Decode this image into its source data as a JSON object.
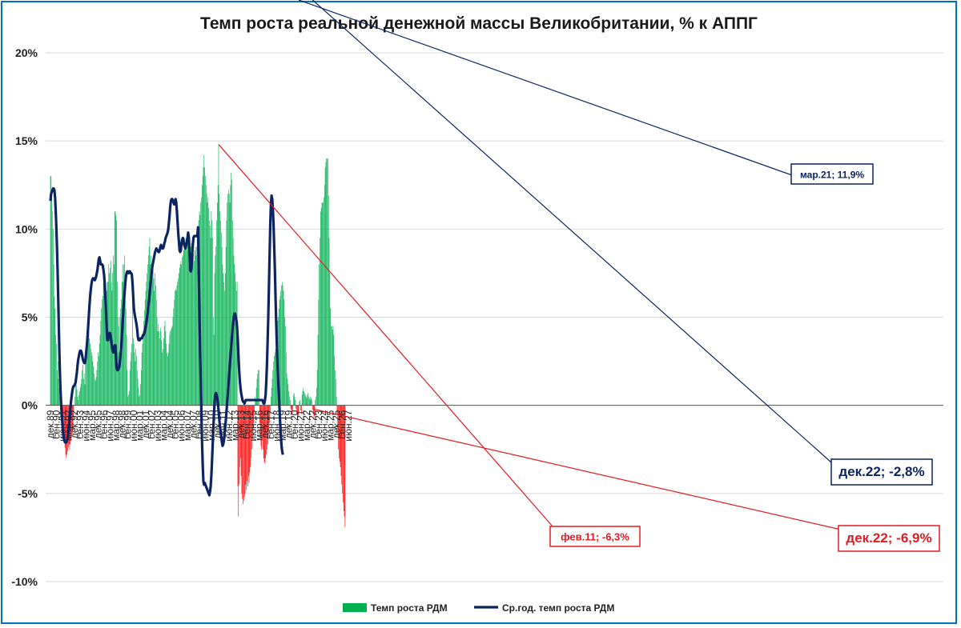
{
  "chart_data": {
    "type": "bar",
    "title": "Темп роста реальной денежной массы Великобритании, % к АППГ",
    "ylim": [
      -10,
      20
    ],
    "yticks": [
      "20%",
      "15%",
      "10%",
      "5%",
      "0%",
      "-5%",
      "-10%"
    ],
    "grid": true,
    "legend_position": "bottom",
    "x_tick_labels": [
      "дек.89",
      "сен.90",
      "июн.91",
      "мар.92",
      "дек.92",
      "сен.93",
      "июн.94",
      "мар.95",
      "дек.95",
      "сен.96",
      "июн.97",
      "мар.98",
      "дек.98",
      "сен.99",
      "июн.00",
      "мар.01",
      "дек.01",
      "сен.02",
      "июн.03",
      "мар.04",
      "дек.04",
      "сен.05",
      "июн.06",
      "мар.07",
      "дек.07",
      "сен.08",
      "июн.09",
      "мар.10",
      "дек.10",
      "сен.11",
      "июн.12",
      "мар.13",
      "дек.13",
      "сен.14",
      "июн.15",
      "мар.16",
      "дек.16",
      "сен.17",
      "июн.18",
      "мар.19",
      "дек.19",
      "сен.20",
      "июн.21",
      "мар.22",
      "дек.22",
      "сен.23",
      "июн.24",
      "мар.25",
      "дек.25",
      "сен.26",
      "июн.27"
    ],
    "series": [
      {
        "name": "Темп роста РДМ",
        "type": "bar",
        "color_positive": "#00b050",
        "color_negative": "#ff0000",
        "start": "дек.89",
        "values": [
          13.0,
          13.0,
          12.0,
          11.0,
          10.0,
          8.0,
          6.2,
          5.5,
          4.0,
          3.5,
          2.0,
          2.5,
          1.5,
          1.0,
          0.5,
          0.5,
          0,
          -0.3,
          -0.8,
          -1.2,
          -1.6,
          -2.0,
          -2.4,
          -2.8,
          -3.0,
          -2.8,
          -2.6,
          -2.4,
          -2.2,
          -2.5,
          -2.2,
          -2.0,
          -1.8,
          -1.6,
          -1.4,
          -0.8,
          0,
          0.5,
          1.6,
          1.3,
          0.9,
          0.5,
          0.3,
          0.6,
          0.8,
          1.0,
          1.2,
          1.5,
          2.0,
          2.3,
          1.5,
          1.8,
          1.2,
          2.8,
          3.4,
          2.8,
          3.6,
          4.0,
          4.2,
          3.8,
          3.5,
          3.2,
          3.0,
          2.8,
          2.5,
          2.2,
          1.8,
          1.5,
          1.4,
          1.6,
          2.0,
          2.5,
          3.0,
          2.8,
          3.5,
          4.0,
          4.8,
          5.5,
          6.0,
          6.2,
          7.0,
          8.0,
          7.5,
          6.5,
          6.0,
          6.5,
          7.0,
          7.0,
          8.0,
          7.5,
          7.8,
          8.2,
          7.0,
          6.5,
          7.5,
          8.5,
          8.0,
          11.0,
          11.0,
          10.8,
          10.5,
          7.0,
          5.0,
          4.5,
          3.0,
          5.0,
          5.5,
          6.0,
          7.0,
          8.0,
          7.0,
          8.0,
          8.5,
          6.0,
          5.5,
          4.0,
          2.0,
          0.5,
          0.6,
          0.8,
          2.0,
          2.5,
          3.0,
          3.5,
          7.5,
          3.8,
          3.5,
          3.0,
          2.5,
          3.2,
          2.8,
          2.0,
          1.5,
          1.0,
          0.5,
          0.6,
          1.2,
          2.0,
          3.0,
          3.5,
          4.2,
          4.8,
          5.4,
          6.0,
          6.5,
          7.0,
          7.5,
          8.0,
          8.5,
          9.0,
          9.5,
          8.0,
          8.5,
          8.0,
          7.6,
          7.8,
          7.2,
          6.5,
          7.5,
          6.8,
          6.0,
          5.0,
          4.2,
          4.6,
          4.2,
          3.8,
          4.4,
          4.2,
          3.7,
          3.0,
          3.2,
          3.8,
          4.5,
          4.8,
          4.2,
          3.5,
          3.0,
          2.8,
          3.0,
          3.5,
          4.0,
          4.2,
          4.3,
          4.4,
          4.5,
          5.0,
          5.5,
          6.0,
          6.5,
          6.6,
          6.5,
          6.8,
          7.0,
          7.2,
          7.5,
          7.8,
          8.0,
          8.2,
          8.0,
          8.4,
          8.5,
          8.8,
          9.0,
          9.5,
          9.0,
          9.5,
          8.8,
          9.2,
          9.5,
          8.5,
          8.2,
          8.8,
          9.0,
          9.2,
          8.8,
          8.5,
          8.6,
          8.2,
          8.8,
          9.0,
          8.5,
          9.0,
          9.5,
          10.0,
          10.5,
          11.0,
          10.8,
          11.5,
          11.8,
          12.5,
          13.0,
          13.5,
          14.2,
          13.5,
          13.0,
          12.5,
          12.0,
          11.5,
          11.8,
          11.2,
          10.5,
          10.2,
          9.5,
          11.0,
          10.5,
          9.5,
          5.0,
          4.0,
          7.5,
          8.5,
          9.0,
          10.5,
          11.5,
          12.5,
          14.8,
          12.0,
          11.0,
          10.5,
          9.8,
          9.0,
          8.0,
          7.5,
          7.0,
          6.5,
          7.5,
          9.0,
          10.5,
          11.5,
          12.0,
          12.2,
          12.0,
          11.5,
          12.5,
          13.2,
          12.8,
          10.5,
          9.5,
          8.5,
          8.0,
          7.5,
          7.0,
          6.5,
          7.0,
          -4.6,
          -6.3,
          -4.5,
          -3.5,
          -3.0,
          -4.0,
          -5.0,
          -5.3,
          -5.6,
          -5.4,
          -5.2,
          -5.0,
          -4.5,
          -4.8,
          -4.3,
          -4.6,
          -4.0,
          -4.4,
          -3.8,
          -3.5,
          -3.0,
          -2.5,
          -2.0,
          -1.5,
          -1.0,
          -0.5,
          0.5,
          0.3,
          1.0,
          1.5,
          1.8,
          2.0,
          2.0,
          -1.0,
          -1.8,
          -2.3,
          -2.5,
          -2.0,
          -2.5,
          -3.0,
          -3.2,
          -3.3,
          -3.0,
          -2.8,
          -2.5,
          -2.2,
          -1.8,
          -1.5,
          -1.0,
          -0.5,
          0.5,
          1.0,
          1.5,
          2.0,
          2.5,
          2.8,
          3.0,
          3.2,
          3.5,
          4.0,
          4.8,
          5.0,
          5.5,
          6.0,
          6.2,
          6.5,
          6.8,
          7.0,
          6.8,
          6.5,
          6.0,
          5.0,
          4.5,
          3.0,
          1.8,
          1.5,
          1.2,
          0.8,
          0.5,
          0.3,
          -0.2,
          -0.4,
          -0.5,
          -0.3,
          0.6,
          0.7,
          0.5,
          0.3,
          -0.2,
          -0.5,
          -0.8,
          -0.6,
          -0.4,
          0.2,
          0.3,
          -0.3,
          -0.5,
          0.6,
          0.8,
          1.0,
          0.8,
          0.7,
          0.6,
          0.5,
          0.4,
          0.6,
          0.7,
          0.5,
          0.4,
          0.3,
          0.5,
          0.4,
          0.3,
          -0.2,
          -0.5,
          -0.8,
          -0.6,
          0.3,
          0.5,
          1.0,
          2.0,
          4.0,
          6.0,
          8.0,
          9.5,
          11.0,
          11.2,
          11.5,
          11.5,
          11.5,
          11.8,
          12.5,
          13.5,
          13.8,
          14.0,
          14.0,
          14.0,
          11.9,
          9.5,
          7.5,
          5.5,
          4.5,
          4.5,
          4.3,
          4.5,
          4.0,
          2.8,
          2.0,
          1.5,
          0.5,
          -0.5,
          -1.5,
          -2.5,
          -3.0,
          -3.2,
          -3.5,
          -4.0,
          -4.5,
          -5.0,
          -5.5,
          -6.0,
          -6.3,
          -6.9
        ]
      },
      {
        "name": "Ср.год. темп роста РДМ",
        "type": "line",
        "color": "#0d2463",
        "start": "дек.89",
        "values": [
          11.6,
          12.0,
          12.1,
          12.2,
          12.3,
          12.3,
          12.2,
          11.8,
          11.0,
          10.0,
          8.8,
          7.3,
          5.6,
          3.8,
          2.2,
          1.0,
          0.2,
          -0.5,
          -1.0,
          -1.5,
          -1.8,
          -2.0,
          -2.1,
          -2.1,
          -2.1,
          -2.0,
          -1.8,
          -1.5,
          -1.1,
          -0.7,
          -0.3,
          0.2,
          0.5,
          0.8,
          1.0,
          1.1,
          1.1,
          1.2,
          1.3,
          1.6,
          1.9,
          2.3,
          2.6,
          2.8,
          3.0,
          3.1,
          3.1,
          3.0,
          2.8,
          2.6,
          2.5,
          2.4,
          2.4,
          2.6,
          3.0,
          3.4,
          3.9,
          4.5,
          5.1,
          5.7,
          6.2,
          6.6,
          6.9,
          7.1,
          7.2,
          7.2,
          7.2,
          7.1,
          7.2,
          7.3,
          7.5,
          7.7,
          8.0,
          8.3,
          8.4,
          8.2,
          8.0,
          8.0,
          8.0,
          7.9,
          7.7,
          7.4,
          6.9,
          6.1,
          5.3,
          4.3,
          3.7,
          3.7,
          4.0,
          4.1,
          4.1,
          3.9,
          3.6,
          3.3,
          3.1,
          3.0,
          3.2,
          3.4,
          3.4,
          2.8,
          2.1,
          2.0,
          2.0,
          2.1,
          2.2,
          2.5,
          2.9,
          3.4,
          4.0,
          4.7,
          5.3,
          5.9,
          6.4,
          6.9,
          7.3,
          7.5,
          7.6,
          7.6,
          7.5,
          7.6,
          7.6,
          7.5,
          7.5,
          7.4,
          6.9,
          6.2,
          5.5,
          5.2,
          5.0,
          4.8,
          4.6,
          4.3,
          3.9,
          3.7,
          3.7,
          3.7,
          3.8,
          3.8,
          3.8,
          3.9,
          4.0,
          4.0,
          4.1,
          4.3,
          4.5,
          4.7,
          5.0,
          5.3,
          5.7,
          6.0,
          6.4,
          6.8,
          7.2,
          7.6,
          7.9,
          8.1,
          8.3,
          8.5,
          8.7,
          8.8,
          8.9,
          8.8,
          8.8,
          8.7,
          8.7,
          8.8,
          9.0,
          9.1,
          9.0,
          8.9,
          8.9,
          9.0,
          9.2,
          9.3,
          9.5,
          9.6,
          9.7,
          9.8,
          10.0,
          10.4,
          10.8,
          11.3,
          11.6,
          11.7,
          11.7,
          11.6,
          11.5,
          11.4,
          11.6,
          11.7,
          11.5,
          11.0,
          10.4,
          9.8,
          9.3,
          8.8,
          8.7,
          8.8,
          9.2,
          9.4,
          9.5,
          9.3,
          9.1,
          9.0,
          8.9,
          9.1,
          9.3,
          9.5,
          9.8,
          9.5,
          8.7,
          7.7,
          7.6,
          7.8,
          8.5,
          9.1,
          9.5,
          9.6,
          9.6,
          9.6,
          9.6,
          9.6,
          9.7,
          10.1,
          7.5,
          5.3,
          3.2,
          1.4,
          -0.4,
          -2.1,
          -3.4,
          -4.3,
          -4.5,
          -4.4,
          -4.5,
          -4.6,
          -4.7,
          -4.8,
          -4.9,
          -5.0,
          -5.1,
          -4.9,
          -4.6,
          -4.0,
          -3.2,
          -2.3,
          -1.3,
          -0.5,
          0.2,
          0.6,
          0.7,
          0.6,
          0.4,
          0.1,
          -0.3,
          -0.8,
          -1.2,
          -1.5,
          -1.8,
          -2.1,
          -2.3,
          -2.2,
          -2.0,
          -1.6,
          -1.2,
          -0.8,
          -0.3,
          0.2,
          0.7,
          1.2,
          1.8,
          2.3,
          2.8,
          3.3,
          3.8,
          4.3,
          4.7,
          5.0,
          5.2,
          5.2,
          5.0,
          4.8,
          4.4,
          3.7,
          2.8,
          2.0,
          1.4,
          1.0,
          0.7,
          0.5,
          0.3,
          0.2,
          0.2,
          0.1,
          0.2,
          0.3,
          0.3,
          0.3,
          0.3,
          0.3,
          0.3,
          0.3,
          0.3,
          0.3,
          0.3,
          0.3,
          0.3,
          0.3,
          0.3,
          0.3,
          0.3,
          0.3,
          0.3,
          0.3,
          0.3,
          0.3,
          0.3,
          0.3,
          0.3,
          0.3,
          0.3,
          0.2,
          0.1,
          0.1,
          0.3,
          0.6,
          1.3,
          2.3,
          3.6,
          5.0,
          6.7,
          8.5,
          10.2,
          11.4,
          11.9,
          11.7,
          11.1,
          10.2,
          9.0,
          7.7,
          6.1,
          4.7,
          3.4,
          2.3,
          1.4,
          0.6,
          -0.2,
          -1.0,
          -1.7,
          -2.3,
          -2.6,
          -2.8
        ]
      }
    ],
    "annotations": [
      {
        "text": "мар.21; 11,9%",
        "series": "Ср.год. темп роста РДМ",
        "color": "#0d2463"
      },
      {
        "text": "дек.22; -2,8%",
        "series": "Ср.год. темп роста РДМ",
        "color": "#0d2463"
      },
      {
        "text": "фев.11; -6,3%",
        "series": "Темп роста РДМ",
        "color": "#e31b23"
      },
      {
        "text": "дек.22; -6,9%",
        "series": "Темп роста РДМ",
        "color": "#e31b23"
      }
    ]
  }
}
